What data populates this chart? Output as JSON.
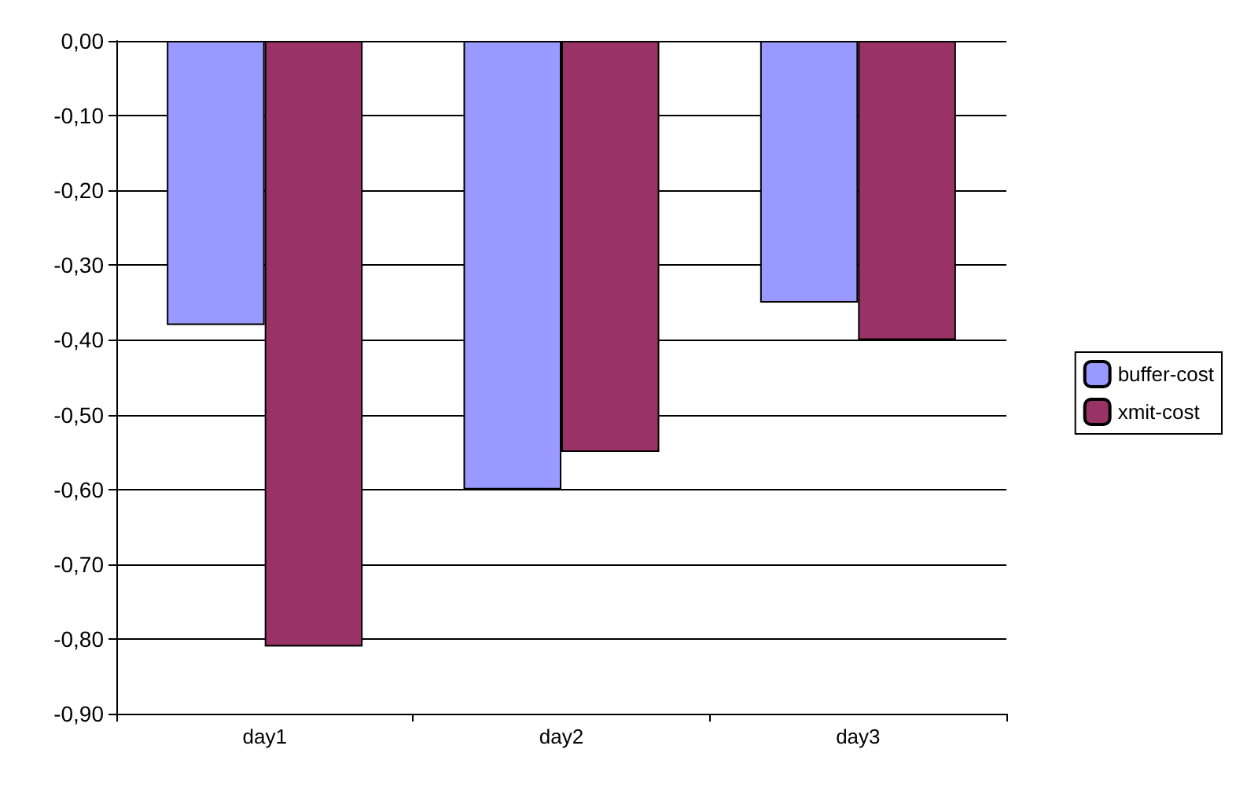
{
  "chart_data": {
    "type": "bar",
    "categories": [
      "day1",
      "day2",
      "day3"
    ],
    "series": [
      {
        "name": "buffer-cost",
        "color": "#9999ff",
        "values": [
          -0.38,
          -0.6,
          -0.35
        ]
      },
      {
        "name": "xmit-cost",
        "color": "#993366",
        "values": [
          -0.81,
          -0.55,
          -0.4
        ]
      }
    ],
    "ylim": [
      -0.9,
      0
    ],
    "yticks": [
      {
        "value": 0,
        "label": "0,00"
      },
      {
        "value": -0.1,
        "label": "-0,10"
      },
      {
        "value": -0.2,
        "label": "-0,20"
      },
      {
        "value": -0.3,
        "label": "-0,30"
      },
      {
        "value": -0.4,
        "label": "-0,40"
      },
      {
        "value": -0.5,
        "label": "-0,50"
      },
      {
        "value": -0.6,
        "label": "-0,60"
      },
      {
        "value": -0.7,
        "label": "-0,70"
      },
      {
        "value": -0.8,
        "label": "-0,80"
      },
      {
        "value": -0.9,
        "label": "-0,90"
      }
    ],
    "grid": "y",
    "legend": "right"
  }
}
